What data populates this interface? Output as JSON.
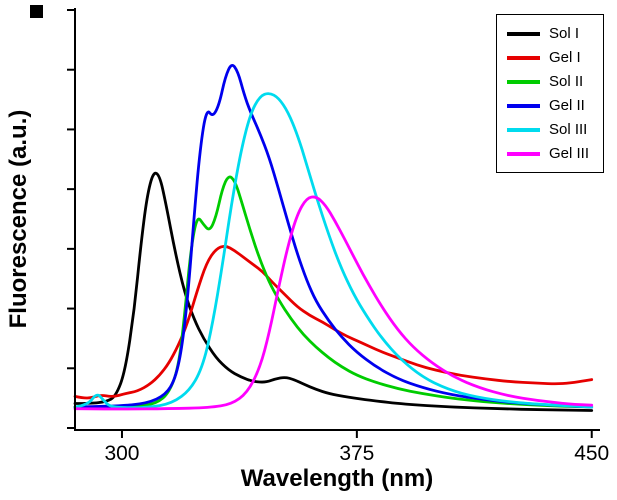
{
  "chart_data": {
    "type": "line",
    "title": "",
    "xlabel": "Wavelength (nm)",
    "ylabel": "Fluorescence (a.u.)",
    "xlim": [
      285,
      452
    ],
    "ylim": [
      0,
      1.15
    ],
    "xticks": [
      300,
      375,
      450
    ],
    "y_tick_count": 8,
    "grid": false,
    "legend_position": "top-right",
    "series": [
      {
        "name": "Sol I",
        "color": "#000000",
        "x": [
          285,
          290,
          295,
          298,
          301,
          304,
          306,
          308,
          310,
          312,
          314,
          317,
          320,
          323,
          326,
          330,
          334,
          338,
          342,
          346,
          349,
          352,
          355,
          358,
          362,
          366,
          372,
          380,
          390,
          405,
          420,
          435,
          450
        ],
        "y": [
          0.03,
          0.03,
          0.035,
          0.05,
          0.12,
          0.3,
          0.48,
          0.62,
          0.69,
          0.68,
          0.6,
          0.46,
          0.345,
          0.27,
          0.215,
          0.16,
          0.125,
          0.105,
          0.092,
          0.09,
          0.1,
          0.105,
          0.098,
          0.085,
          0.07,
          0.058,
          0.048,
          0.038,
          0.028,
          0.02,
          0.015,
          0.012,
          0.01
        ]
      },
      {
        "name": "Gel I",
        "color": "#e60000",
        "x": [
          285,
          289,
          293,
          297,
          301,
          305,
          309,
          312,
          315,
          318,
          321,
          324,
          327,
          330,
          333,
          336,
          339,
          342,
          345,
          348,
          352,
          356,
          360,
          364,
          368,
          372,
          376,
          382,
          388,
          394,
          400,
          408,
          416,
          424,
          432,
          440,
          446,
          450
        ],
        "y": [
          0.05,
          0.042,
          0.055,
          0.048,
          0.058,
          0.065,
          0.085,
          0.11,
          0.145,
          0.195,
          0.26,
          0.35,
          0.43,
          0.47,
          0.48,
          0.465,
          0.445,
          0.425,
          0.405,
          0.375,
          0.34,
          0.305,
          0.28,
          0.262,
          0.24,
          0.22,
          0.205,
          0.18,
          0.16,
          0.14,
          0.125,
          0.11,
          0.1,
          0.092,
          0.088,
          0.085,
          0.092,
          0.098
        ]
      },
      {
        "name": "Sol II",
        "color": "#00cc00",
        "x": [
          285,
          295,
          305,
          311,
          315,
          318,
          320,
          322,
          324,
          326,
          328,
          330,
          332,
          334,
          336,
          338,
          341,
          344,
          347,
          350,
          354,
          358,
          362,
          366,
          370,
          375,
          381,
          388,
          396,
          405,
          415,
          428,
          440,
          450
        ],
        "y": [
          0.02,
          0.02,
          0.022,
          0.03,
          0.06,
          0.13,
          0.28,
          0.47,
          0.565,
          0.54,
          0.52,
          0.56,
          0.64,
          0.68,
          0.665,
          0.61,
          0.52,
          0.44,
          0.375,
          0.325,
          0.27,
          0.225,
          0.19,
          0.16,
          0.135,
          0.11,
          0.09,
          0.072,
          0.058,
          0.045,
          0.035,
          0.027,
          0.022,
          0.02
        ]
      },
      {
        "name": "Gel II",
        "color": "#0000ee",
        "x": [
          285,
          298,
          308,
          314,
          317,
          319,
          321,
          323,
          325,
          327,
          329,
          331,
          333,
          335,
          337,
          339,
          341,
          344,
          347,
          350,
          353,
          356,
          359,
          362,
          366,
          370,
          375,
          381,
          388,
          396,
          405,
          416,
          428,
          440,
          450
        ],
        "y": [
          0.02,
          0.022,
          0.03,
          0.055,
          0.1,
          0.18,
          0.33,
          0.56,
          0.76,
          0.87,
          0.845,
          0.88,
          0.96,
          1.0,
          0.975,
          0.91,
          0.86,
          0.8,
          0.73,
          0.64,
          0.545,
          0.455,
          0.38,
          0.32,
          0.265,
          0.22,
          0.175,
          0.135,
          0.1,
          0.075,
          0.055,
          0.04,
          0.03,
          0.024,
          0.02
        ]
      },
      {
        "name": "Sol III",
        "color": "#00dbee",
        "x": [
          285,
          289,
          292,
          294,
          296,
          300,
          308,
          316,
          322,
          326,
          329,
          332,
          335,
          338,
          341,
          344,
          347,
          350,
          353,
          356,
          359,
          362,
          366,
          370,
          374,
          378,
          383,
          389,
          396,
          404,
          413,
          424,
          436,
          450
        ],
        "y": [
          0.02,
          0.025,
          0.06,
          0.04,
          0.022,
          0.018,
          0.018,
          0.03,
          0.07,
          0.14,
          0.26,
          0.42,
          0.6,
          0.75,
          0.855,
          0.905,
          0.915,
          0.9,
          0.86,
          0.795,
          0.71,
          0.62,
          0.51,
          0.415,
          0.34,
          0.28,
          0.215,
          0.155,
          0.105,
          0.07,
          0.048,
          0.034,
          0.026,
          0.02
        ]
      },
      {
        "name": "Gel III",
        "color": "#ff00ff",
        "x": [
          285,
          300,
          315,
          328,
          335,
          340,
          344,
          347,
          350,
          353,
          356,
          359,
          362,
          365,
          368,
          371,
          375,
          379,
          383,
          388,
          393,
          399,
          406,
          414,
          423,
          433,
          443,
          450
        ],
        "y": [
          0.015,
          0.014,
          0.015,
          0.018,
          0.028,
          0.06,
          0.13,
          0.23,
          0.36,
          0.48,
          0.57,
          0.615,
          0.62,
          0.595,
          0.55,
          0.5,
          0.43,
          0.365,
          0.305,
          0.24,
          0.19,
          0.145,
          0.105,
          0.075,
          0.052,
          0.038,
          0.028,
          0.025
        ]
      }
    ]
  }
}
